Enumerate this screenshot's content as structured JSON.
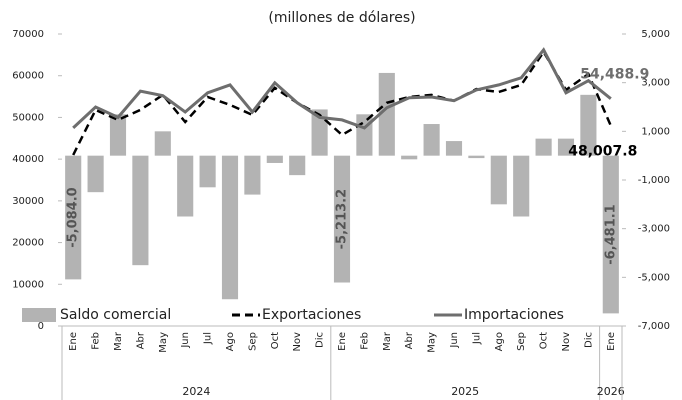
{
  "chart_data": {
    "type": "combo",
    "title": "(millones de dólares)",
    "categories": [
      "Ene",
      "Feb",
      "Mar",
      "Abr",
      "May",
      "Jun",
      "Jul",
      "Ago",
      "Sep",
      "Oct",
      "Nov",
      "Dic",
      "Ene",
      "Feb",
      "Mar",
      "Abr",
      "May",
      "Jun",
      "Jul",
      "Ago",
      "Sep",
      "Oct",
      "Nov",
      "Dic",
      "Ene"
    ],
    "groups": [
      {
        "label": "2024",
        "count": 12
      },
      {
        "label": "2025",
        "count": 12
      },
      {
        "label": "2026",
        "count": 1
      }
    ],
    "series": [
      {
        "name": "Saldo comercial",
        "kind": "bar",
        "axis": "y2",
        "color": "#b3b3b3",
        "values": [
          -5084.0,
          -1500,
          1700,
          -4500,
          1000,
          -2500,
          -1300,
          -5900,
          -1600,
          -300,
          -800,
          1900,
          -5213.2,
          1700,
          3400,
          -150,
          1300,
          600,
          -100,
          -2000,
          -2500,
          700,
          700,
          2500,
          -6481.1
        ],
        "value_labels": [
          "-5,084.0",
          null,
          null,
          null,
          null,
          null,
          null,
          null,
          null,
          null,
          null,
          null,
          "-5,213.2",
          null,
          null,
          null,
          null,
          null,
          null,
          null,
          null,
          null,
          null,
          null,
          "-6,481.1"
        ]
      },
      {
        "name": "Exportaciones",
        "kind": "line",
        "dashed": true,
        "color": "#000000",
        "values": [
          41000,
          51800,
          49400,
          51800,
          55400,
          48900,
          54900,
          53000,
          50600,
          57100,
          53500,
          50600,
          45800,
          48900,
          53500,
          54900,
          55400,
          54000,
          56800,
          56100,
          57800,
          65700,
          56600,
          60400,
          48007.8
        ],
        "value_labels": [
          null,
          null,
          null,
          null,
          null,
          null,
          null,
          null,
          null,
          null,
          null,
          null,
          null,
          null,
          null,
          null,
          null,
          null,
          null,
          null,
          null,
          null,
          null,
          null,
          "48,007.8"
        ]
      },
      {
        "name": "Importaciones",
        "kind": "line",
        "dashed": false,
        "color": "#6e6e6e",
        "values": [
          47500,
          52500,
          50000,
          56300,
          55200,
          51300,
          55900,
          57800,
          51300,
          58300,
          53500,
          50000,
          49400,
          47500,
          52300,
          54700,
          54900,
          54000,
          56600,
          57800,
          59500,
          66200,
          55900,
          58800,
          54488.9
        ],
        "value_labels": [
          null,
          null,
          null,
          null,
          null,
          null,
          null,
          null,
          null,
          null,
          null,
          null,
          null,
          null,
          null,
          null,
          null,
          null,
          null,
          null,
          null,
          null,
          null,
          null,
          "54,488.9"
        ]
      }
    ],
    "ylim": [
      0,
      70000
    ],
    "yticks": [
      0,
      10000,
      20000,
      30000,
      40000,
      50000,
      60000,
      70000
    ],
    "y2lim": [
      -7000,
      5000
    ],
    "y2ticks": [
      {
        "value": -7000,
        "label": "-7,000"
      },
      {
        "value": -5000,
        "label": "-5,000"
      },
      {
        "value": -3000,
        "label": "-3,000"
      },
      {
        "value": -1000,
        "label": "-1,000"
      },
      {
        "value": 1000,
        "label": "1,000"
      },
      {
        "value": 3000,
        "label": "3,000"
      },
      {
        "value": 5000,
        "label": "5,000"
      }
    ],
    "legend": "bottom"
  }
}
